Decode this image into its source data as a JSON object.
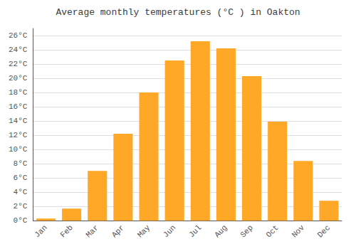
{
  "chart_data": {
    "type": "bar",
    "title": "Average monthly temperatures (°C ) in Oakton",
    "categories": [
      "Jan",
      "Feb",
      "Mar",
      "Apr",
      "May",
      "Jun",
      "Jul",
      "Aug",
      "Sep",
      "Oct",
      "Nov",
      "Dec"
    ],
    "values": [
      0.3,
      1.7,
      7.0,
      12.2,
      18.0,
      22.5,
      25.2,
      24.2,
      20.3,
      13.9,
      8.4,
      2.8
    ],
    "color": "#FFA726",
    "ylim": [
      0,
      27
    ],
    "yticks": [
      {
        "value": 0,
        "label": "0°C"
      },
      {
        "value": 2,
        "label": "2°C"
      },
      {
        "value": 4,
        "label": "4°C"
      },
      {
        "value": 6,
        "label": "6°C"
      },
      {
        "value": 8,
        "label": "8°C"
      },
      {
        "value": 10,
        "label": "10°C"
      },
      {
        "value": 12,
        "label": "12°C"
      },
      {
        "value": 14,
        "label": "14°C"
      },
      {
        "value": 16,
        "label": "16°C"
      },
      {
        "value": 18,
        "label": "18°C"
      },
      {
        "value": 20,
        "label": "20°C"
      },
      {
        "value": 22,
        "label": "22°C"
      },
      {
        "value": 24,
        "label": "24°C"
      },
      {
        "value": 26,
        "label": "26°C"
      }
    ],
    "grid": true
  }
}
